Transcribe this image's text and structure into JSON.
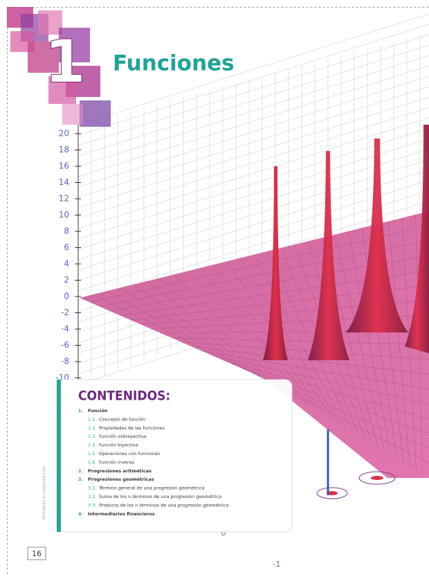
{
  "header": {
    "number": "1",
    "title": "Funciones"
  },
  "graph": {
    "z_labels": [
      "20",
      "18",
      "16",
      "14",
      "12",
      "10",
      "8",
      "6",
      "4",
      "2",
      "0",
      "-2",
      "-4",
      "-6",
      "-8",
      "-10"
    ],
    "x_labels": [
      "0",
      "-1"
    ]
  },
  "contents": {
    "title": "CONTENIDOS:",
    "items": [
      {
        "num": "1.",
        "text": "Función",
        "level": 1
      },
      {
        "num": "1.1.",
        "text": "Concepto de función",
        "level": 2
      },
      {
        "num": "1.2.",
        "text": "Propiedades de las funciones",
        "level": 2
      },
      {
        "num": "1.3.",
        "text": "Función sobreyectiva",
        "level": 2
      },
      {
        "num": "1.4.",
        "text": "Función biyectiva",
        "level": 2
      },
      {
        "num": "1.5.",
        "text": "Operaciones con funciones",
        "level": 2
      },
      {
        "num": "1.6.",
        "text": "Función inversa",
        "level": 2
      },
      {
        "num": "2.",
        "text": "Progresiones aritméticas",
        "level": 1
      },
      {
        "num": "3.",
        "text": "Progresiones geométricas",
        "level": 1
      },
      {
        "num": "3.1.",
        "text": "Término general de una progresión geométrica",
        "level": 2
      },
      {
        "num": "3.2.",
        "text": "Suma de los n términos de una progresión geométrica",
        "level": 2
      },
      {
        "num": "3.3.",
        "text": "Producto de los n términos de una progresión geométrica",
        "level": 2
      },
      {
        "num": "4.",
        "text": "Intermediarios financieros",
        "level": 1
      }
    ]
  },
  "footer": {
    "page": "16",
    "side_note": "Prohibida su reproducción"
  }
}
